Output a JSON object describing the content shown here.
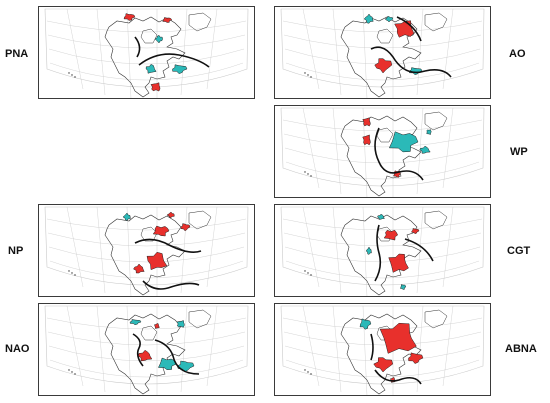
{
  "colors": {
    "positive": "#e8302c",
    "negative": "#2bb9b8",
    "line": "#111111",
    "grid": "#c9c9c9",
    "coast": "#333333"
  },
  "panels": [
    {
      "id": "pna",
      "label": "PNA",
      "side": "left"
    },
    {
      "id": "ao",
      "label": "AO",
      "side": "right"
    },
    {
      "id": "wp",
      "label": "WP",
      "side": "right"
    },
    {
      "id": "np",
      "label": "NP",
      "side": "left"
    },
    {
      "id": "cgt",
      "label": "CGT",
      "side": "right"
    },
    {
      "id": "nao",
      "label": "NAO",
      "side": "left"
    },
    {
      "id": "abna",
      "label": "ABNA",
      "side": "right"
    }
  ]
}
